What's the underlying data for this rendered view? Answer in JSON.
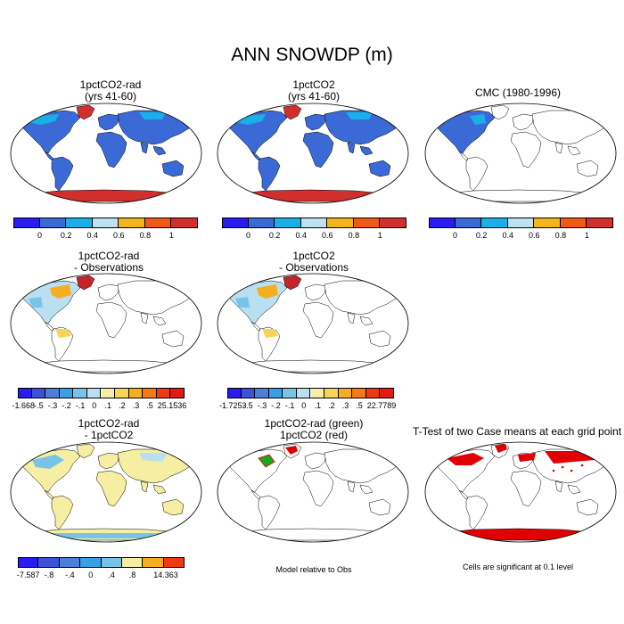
{
  "title": "ANN SNOWDP (m)",
  "colors": {
    "seq": [
      "#2a1bef",
      "#3b6ad6",
      "#19b0ea",
      "#bfe1ee",
      "#f2b51b",
      "#f05a16",
      "#d12f2d"
    ],
    "diff": [
      "#2a1bef",
      "#3b52d9",
      "#4c7fd8",
      "#3aa0e6",
      "#78c4e8",
      "#b9dff0",
      "#f5eea3",
      "#f3d55a",
      "#f5ae22",
      "#f47a16",
      "#ed3914",
      "#e41a14",
      "#c4232a"
    ],
    "ocean_outline": "#000000",
    "sig": "#e00000",
    "green": "#19a81d"
  },
  "panels": [
    {
      "title": "1pctCO2-rad",
      "subtitle": "(yrs 41-60)",
      "fill": "full"
    },
    {
      "title": "1pctCO2",
      "subtitle": "(yrs 41-60)",
      "fill": "full"
    },
    {
      "title": "CMC (1980-1996)",
      "subtitle": "",
      "fill": "na"
    },
    {
      "title": "1pctCO2-rad",
      "subtitle": "- Observations",
      "fill": "na-diff"
    },
    {
      "title": "1pctCO2",
      "subtitle": "- Observations",
      "fill": "na-diff"
    },
    {
      "title": "1pctCO2-rad",
      "subtitle": "- 1pctCO2",
      "fill": "global-diff"
    },
    {
      "title": "1pctCO2-rad (green)",
      "subtitle": "1pctCO2 (red)",
      "fill": "contour"
    },
    {
      "title": "T-Test of two Case means at each grid point",
      "subtitle": "",
      "fill": "ttest"
    }
  ],
  "colorbars": [
    {
      "labels": [
        "0",
        "0.2",
        "0.4",
        "0.6",
        "0.8",
        "1"
      ]
    },
    {
      "labels": [
        "0",
        "0.2",
        "0.4",
        "0.6",
        "0.8",
        "1"
      ]
    },
    {
      "labels": [
        "0",
        "0.2",
        "0.4",
        "0.6",
        "0.8",
        "1"
      ]
    },
    {
      "labels": [
        "-1.668",
        "-.5",
        "-.3",
        "-.2",
        "-.1",
        "0",
        ".1",
        ".2",
        ".3",
        ".5",
        "25.1536"
      ]
    },
    {
      "labels": [
        "-1.7253",
        "-.5",
        "-.3",
        "-.2",
        "-.1",
        "0",
        ".1",
        ".2",
        ".3",
        ".5",
        "22.7789"
      ]
    },
    {
      "labels": [
        "-7.587",
        "-.8",
        "-.4",
        "0",
        ".4",
        ".8",
        "14.363"
      ]
    }
  ],
  "notes": {
    "model_relative": "Model relative to Obs",
    "significance": "Cells are significant at 0.1 level"
  },
  "chart_data": {
    "type": "heatmap",
    "title": "ANN SNOWDP (m)",
    "variable": "SNOWDP",
    "units": "m",
    "season": "ANN",
    "sequential_levels": [
      0,
      0.2,
      0.4,
      0.6,
      0.8,
      1
    ],
    "difference_levels_obs": [
      -0.5,
      -0.3,
      -0.2,
      -0.1,
      0,
      0.1,
      0.2,
      0.3,
      0.5
    ],
    "difference_levels_case": [
      -0.8,
      -0.4,
      0,
      0.4,
      0.8
    ],
    "ranges": {
      "1pctCO2-rad - Observations": [
        -1.668,
        25.1536
      ],
      "1pctCO2 - Observations": [
        -1.7253,
        22.7789
      ],
      "1pctCO2-rad - 1pctCO2": [
        -7.587,
        14.363
      ]
    },
    "significance_level": 0.1
  }
}
